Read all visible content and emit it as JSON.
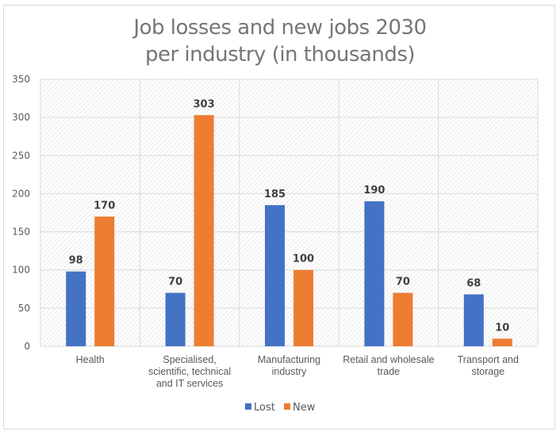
{
  "chart_data": {
    "type": "bar",
    "title_lines": [
      "Job losses and new jobs 2030",
      "per industry (in thousands)"
    ],
    "categories": [
      [
        "Health"
      ],
      [
        "Specialised,",
        "scientific, technical",
        "and IT services"
      ],
      [
        "Manufacturing",
        "industry"
      ],
      [
        "Retail and wholesale",
        "trade"
      ],
      [
        "Transport and",
        "storage"
      ]
    ],
    "series": [
      {
        "name": "Lost",
        "color": "#4472c4",
        "values": [
          98,
          70,
          185,
          190,
          68
        ]
      },
      {
        "name": "New",
        "color": "#ed7d31",
        "values": [
          170,
          303,
          100,
          70,
          10
        ]
      }
    ],
    "ylim": [
      0,
      350
    ],
    "yticks": [
      "0",
      "50",
      "100",
      "150",
      "200",
      "250",
      "300",
      "350"
    ],
    "ytick_values": [
      0,
      50,
      100,
      150,
      200,
      250,
      300,
      350
    ],
    "xlabel": "",
    "ylabel": "",
    "grid": true,
    "legend_position": "bottom",
    "data_labels": true
  }
}
